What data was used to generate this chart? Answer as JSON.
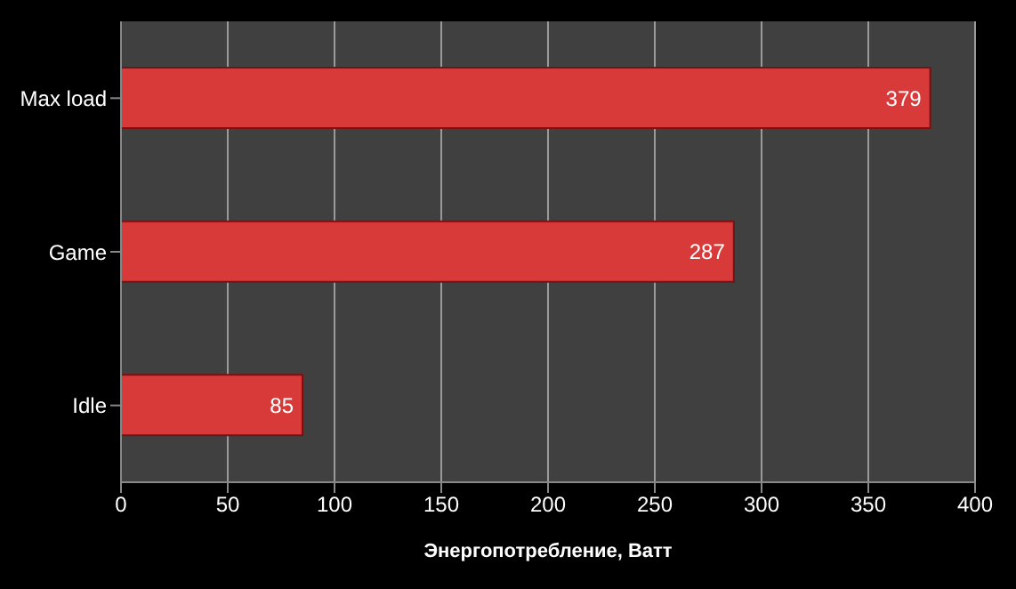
{
  "chart_data": {
    "type": "bar",
    "orientation": "horizontal",
    "categories": [
      "Max load",
      "Game",
      "Idle"
    ],
    "values": [
      379,
      287,
      85
    ],
    "color": "#d83a3a",
    "xlabel": "Энергопотребление, Ватт",
    "xlim": [
      0,
      400
    ],
    "xticks": [
      0,
      50,
      100,
      150,
      200,
      250,
      300,
      350,
      400
    ],
    "grid": "x",
    "data_labels": true,
    "legend": false
  }
}
